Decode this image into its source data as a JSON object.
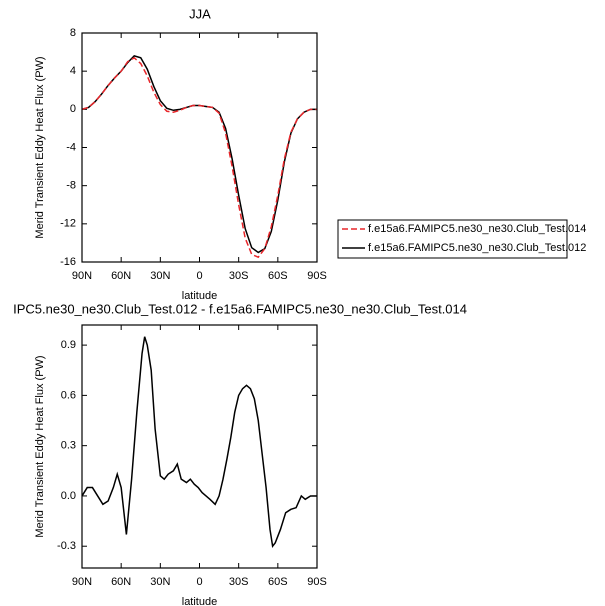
{
  "chart_data": [
    {
      "type": "line",
      "title": "JJA",
      "xlabel": "latitude",
      "ylabel": "Merid Transient Eddy Heat Flux (PW)",
      "x": [
        90,
        85,
        80,
        75,
        70,
        65,
        60,
        55,
        50,
        45,
        40,
        35,
        30,
        25,
        20,
        15,
        10,
        5,
        0,
        -5,
        -10,
        -15,
        -20,
        -25,
        -30,
        -35,
        -40,
        -45,
        -50,
        -55,
        -60,
        -65,
        -70,
        -75,
        -80,
        -85,
        -90
      ],
      "series": [
        {
          "name": "f.e15a6.FAMIPC5.ne30_ne30.Club_Test.014",
          "color": "#e8262a",
          "dashed": true,
          "values": [
            0,
            0.2,
            0.8,
            1.6,
            2.5,
            3.3,
            4.0,
            5.0,
            5.4,
            4.8,
            3.5,
            1.8,
            0.5,
            -0.2,
            -0.3,
            -0.1,
            0.2,
            0.4,
            0.4,
            0.3,
            0.2,
            -0.4,
            -2.5,
            -6,
            -10,
            -13.5,
            -15.2,
            -15.5,
            -14.6,
            -12.3,
            -9,
            -5.2,
            -2.4,
            -1,
            -0.3,
            0,
            0
          ]
        },
        {
          "name": "f.e15a6.FAMIPC5.ne30_ne30.Club_Test.012",
          "color": "#000000",
          "dashed": false,
          "values": [
            0,
            0.2,
            0.8,
            1.6,
            2.5,
            3.3,
            4.0,
            4.9,
            5.6,
            5.4,
            4.2,
            2.4,
            0.9,
            0.1,
            -0.1,
            0,
            0.2,
            0.4,
            0.4,
            0.3,
            0.2,
            -0.3,
            -2,
            -5.2,
            -9,
            -12.5,
            -14.5,
            -15,
            -14.6,
            -12.8,
            -9.5,
            -5.5,
            -2.5,
            -1,
            -0.3,
            0,
            0
          ]
        }
      ],
      "xlim": [
        90,
        -90
      ],
      "xticks": [
        {
          "value": 90,
          "label": "90N"
        },
        {
          "value": 60,
          "label": "60N"
        },
        {
          "value": 30,
          "label": "30N"
        },
        0,
        {
          "value": -30,
          "label": "30S"
        },
        {
          "value": -60,
          "label": "60S"
        },
        {
          "value": -90,
          "label": "90S"
        }
      ],
      "ylim": [
        -16,
        8
      ],
      "yticks": [
        8,
        4,
        0,
        -4,
        -8,
        -12,
        -16
      ]
    },
    {
      "type": "line",
      "title": "IPC5.ne30_ne30.Club_Test.012 - f.e15a6.FAMIPC5.ne30_ne30.Club_Test.014",
      "xlabel": "latitude",
      "ylabel": "Merid Transient Eddy Heat Flux (PW)",
      "x": [
        90,
        86,
        82,
        78,
        74,
        70,
        66,
        63,
        60,
        56,
        52,
        48,
        44,
        42,
        40,
        37,
        34,
        30,
        27,
        24,
        20,
        17,
        14,
        10,
        7,
        4,
        1,
        -2,
        -5,
        -8,
        -12,
        -15,
        -18,
        -21,
        -24,
        -27,
        -30,
        -33,
        -36,
        -39,
        -42,
        -45,
        -48,
        -51,
        -54,
        -56,
        -58,
        -62,
        -66,
        -70,
        -74,
        -78,
        -81,
        -85,
        -90
      ],
      "values": [
        0,
        0.05,
        0.05,
        0.0,
        -0.05,
        -0.03,
        0.05,
        0.13,
        0.05,
        -0.23,
        0.1,
        0.5,
        0.85,
        0.95,
        0.9,
        0.75,
        0.4,
        0.12,
        0.1,
        0.13,
        0.15,
        0.19,
        0.1,
        0.08,
        0.1,
        0.07,
        0.05,
        0.02,
        0.0,
        -0.02,
        -0.05,
        0.0,
        0.1,
        0.22,
        0.35,
        0.5,
        0.6,
        0.64,
        0.66,
        0.64,
        0.58,
        0.45,
        0.25,
        0.05,
        -0.2,
        -0.3,
        -0.28,
        -0.2,
        -0.1,
        -0.08,
        -0.07,
        0.0,
        -0.02,
        0.0,
        0.0
      ],
      "color": "#000000",
      "xlim": [
        90,
        -90
      ],
      "xticks": [
        {
          "value": 90,
          "label": "90N"
        },
        {
          "value": 60,
          "label": "60N"
        },
        {
          "value": 30,
          "label": "30N"
        },
        0,
        {
          "value": -30,
          "label": "30S"
        },
        {
          "value": -60,
          "label": "60S"
        },
        {
          "value": -90,
          "label": "90S"
        }
      ],
      "ylim": [
        -0.43,
        1.02
      ],
      "yticks": [
        0.9,
        0.6,
        0.3,
        {
          "value": 0,
          "label": "0.0"
        },
        -0.3
      ]
    }
  ]
}
